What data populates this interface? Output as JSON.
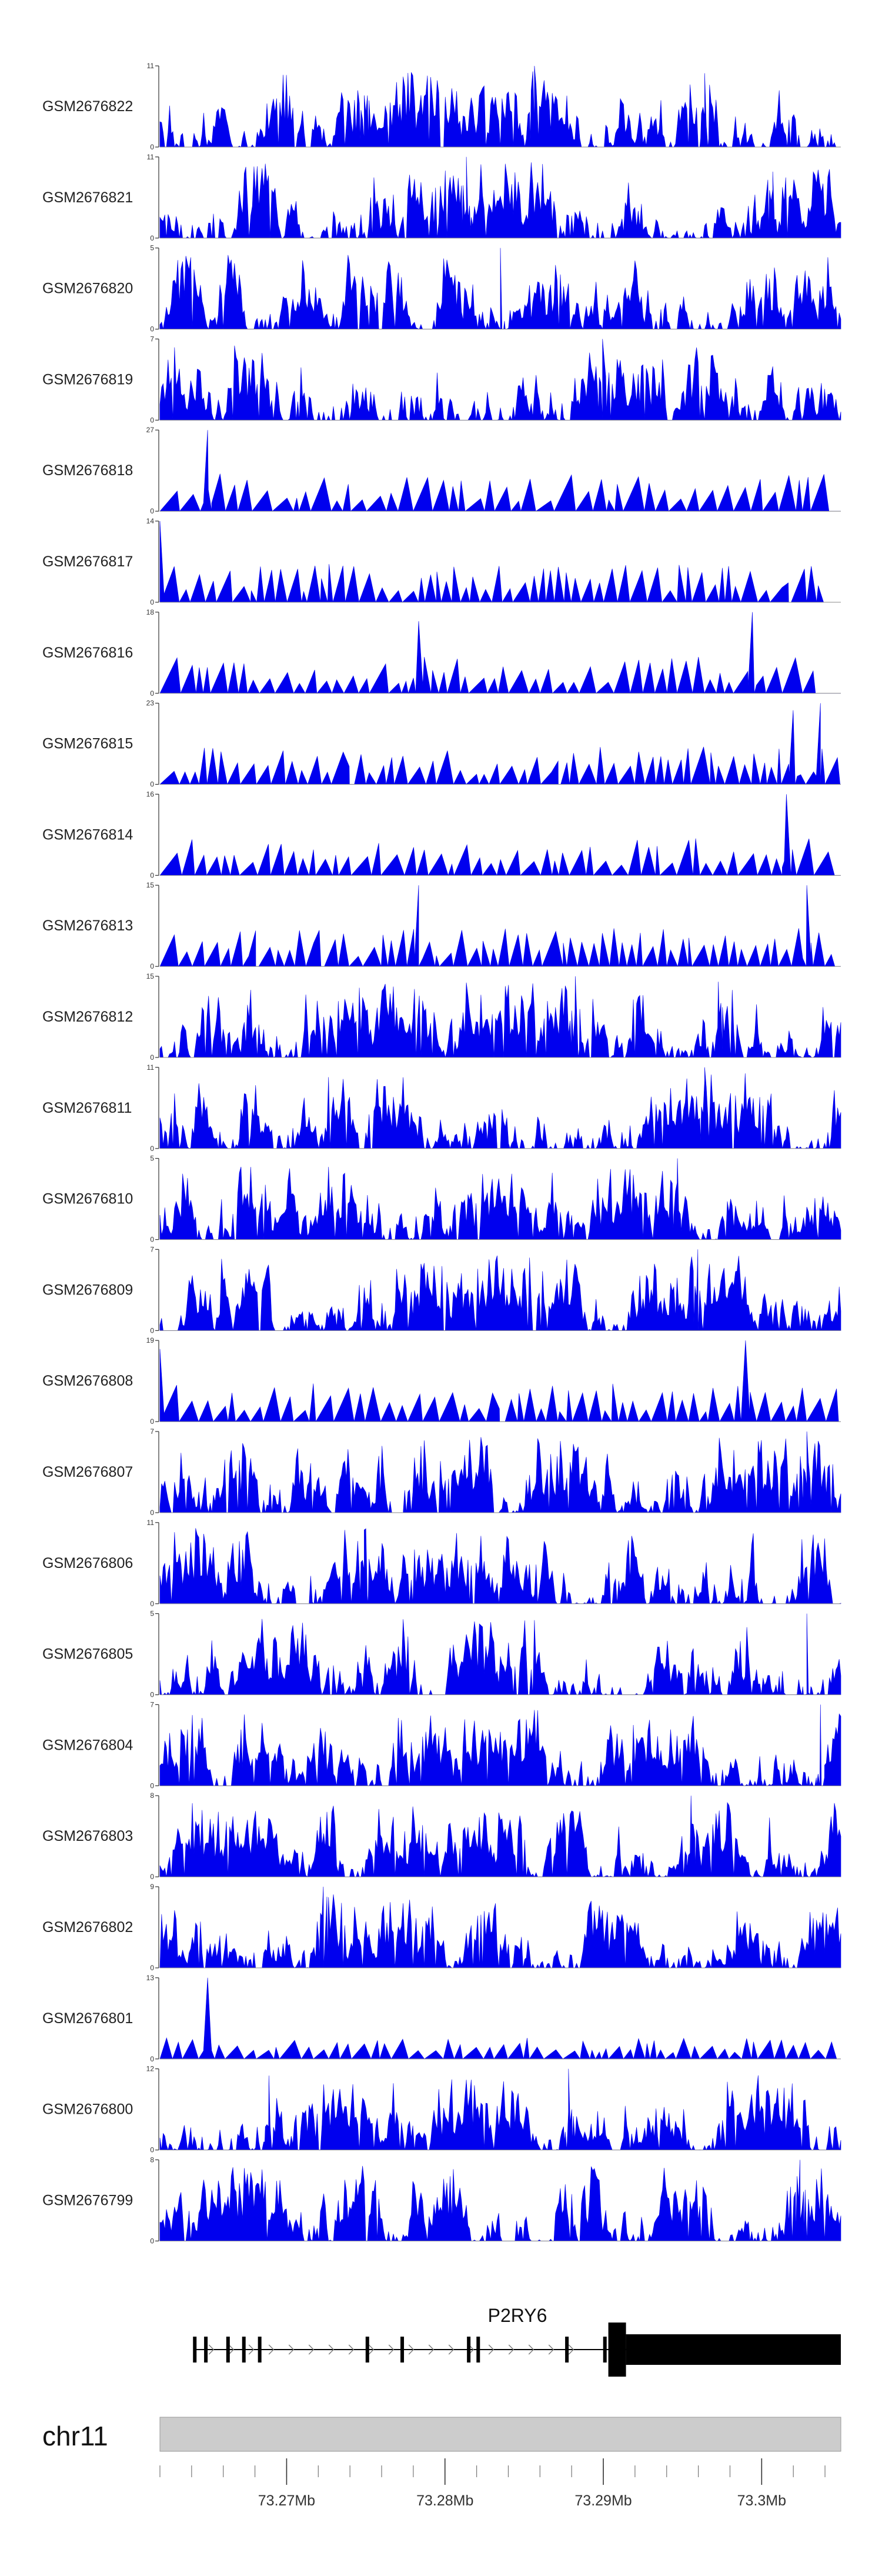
{
  "chart_data": {
    "type": "area",
    "title": "",
    "xlabel": "",
    "ylabel": "",
    "x_range": [
      73.262,
      73.305
    ],
    "color": "#0000ee",
    "grid": false,
    "tracks": [
      {
        "name": "GSM2676822",
        "ymax": 11,
        "ymin": 0,
        "seed": 22,
        "profile": [
          [
            0.3,
            7
          ],
          [
            0.55,
            11
          ],
          [
            0.8,
            10
          ]
        ]
      },
      {
        "name": "GSM2676821",
        "ymax": 11,
        "ymin": 0,
        "seed": 21,
        "profile": [
          [
            0.45,
            11
          ],
          [
            0.9,
            9
          ]
        ]
      },
      {
        "name": "GSM2676820",
        "ymax": 5,
        "ymin": 0,
        "seed": 20,
        "profile": [
          [
            0.5,
            5
          ]
        ]
      },
      {
        "name": "GSM2676819",
        "ymax": 7,
        "ymin": 0,
        "seed": 19,
        "profile": [
          [
            0.65,
            7
          ]
        ]
      },
      {
        "name": "GSM2676818",
        "ymax": 27,
        "ymin": 0,
        "seed": 18,
        "profile": [
          [
            0.07,
            27
          ]
        ],
        "sparse": true
      },
      {
        "name": "GSM2676817",
        "ymax": 14,
        "ymin": 0,
        "seed": 17,
        "profile": [
          [
            0.0,
            14
          ]
        ],
        "sparse": true
      },
      {
        "name": "GSM2676816",
        "ymax": 18,
        "ymin": 0,
        "seed": 16,
        "profile": [
          [
            0.38,
            16
          ],
          [
            0.87,
            18
          ]
        ],
        "sparse": true
      },
      {
        "name": "GSM2676815",
        "ymax": 23,
        "ymin": 0,
        "seed": 15,
        "profile": [
          [
            0.97,
            23
          ],
          [
            0.93,
            21
          ]
        ],
        "sparse": true
      },
      {
        "name": "GSM2676814",
        "ymax": 16,
        "ymin": 0,
        "seed": 14,
        "profile": [
          [
            0.92,
            16
          ]
        ],
        "sparse": true
      },
      {
        "name": "GSM2676813",
        "ymax": 15,
        "ymin": 0,
        "seed": 13,
        "profile": [
          [
            0.38,
            15
          ],
          [
            0.95,
            15
          ]
        ],
        "sparse": true
      },
      {
        "name": "GSM2676812",
        "ymax": 15,
        "ymin": 0,
        "seed": 12,
        "profile": [
          [
            0.61,
            15
          ],
          [
            0.82,
            14
          ]
        ]
      },
      {
        "name": "GSM2676811",
        "ymax": 11,
        "ymin": 0,
        "seed": 11,
        "profile": [
          [
            0.8,
            11
          ]
        ]
      },
      {
        "name": "GSM2676810",
        "ymax": 5,
        "ymin": 0,
        "seed": 10,
        "profile": [
          [
            0.76,
            5
          ]
        ]
      },
      {
        "name": "GSM2676809",
        "ymax": 7,
        "ymin": 0,
        "seed": 9,
        "profile": [
          [
            0.79,
            7
          ]
        ]
      },
      {
        "name": "GSM2676808",
        "ymax": 19,
        "ymin": 0,
        "seed": 8,
        "profile": [
          [
            0.86,
            19
          ],
          [
            0.0,
            17
          ]
        ],
        "sparse": true
      },
      {
        "name": "GSM2676807",
        "ymax": 7,
        "ymin": 0,
        "seed": 7,
        "profile": [
          [
            0.95,
            7
          ]
        ]
      },
      {
        "name": "GSM2676806",
        "ymax": 11,
        "ymin": 0,
        "seed": 6,
        "profile": [
          [
            0.3,
            10
          ]
        ]
      },
      {
        "name": "GSM2676805",
        "ymax": 5,
        "ymin": 0,
        "seed": 5,
        "profile": [
          [
            0.95,
            5
          ]
        ]
      },
      {
        "name": "GSM2676804",
        "ymax": 7,
        "ymin": 0,
        "seed": 4,
        "profile": [
          [
            0.97,
            7
          ]
        ]
      },
      {
        "name": "GSM2676803",
        "ymax": 8,
        "ymin": 0,
        "seed": 3,
        "profile": [
          [
            0.78,
            8
          ]
        ]
      },
      {
        "name": "GSM2676802",
        "ymax": 9,
        "ymin": 0,
        "seed": 2,
        "profile": [
          [
            0.24,
            9
          ]
        ]
      },
      {
        "name": "GSM2676801",
        "ymax": 13,
        "ymin": 0,
        "seed": 1,
        "profile": [
          [
            0.07,
            13
          ]
        ],
        "sparse": true,
        "low": true
      },
      {
        "name": "GSM2676800",
        "ymax": 12,
        "ymin": 0,
        "seed": 100,
        "profile": [
          [
            0.6,
            12
          ],
          [
            0.16,
            11
          ]
        ]
      },
      {
        "name": "GSM2676799",
        "ymax": 8,
        "ymin": 0,
        "seed": 99,
        "profile": [
          [
            0.94,
            8
          ]
        ]
      }
    ],
    "gene": {
      "name": "P2RY6",
      "strand": "+",
      "exons": [
        73.2642,
        73.2649,
        73.2663,
        73.2673,
        73.2683,
        73.2751,
        73.2773,
        73.2815,
        73.2821,
        73.2877,
        73.2901
      ],
      "utr_start": 73.2895,
      "utr_end": 73.305
    },
    "chromosome": {
      "name": "chr11",
      "tick_labels": [
        "73.27Mb",
        "73.28Mb",
        "73.29Mb",
        "73.3Mb"
      ],
      "tick_values": [
        73.27,
        73.28,
        73.29,
        73.3
      ],
      "minor_step": 0.002
    }
  }
}
